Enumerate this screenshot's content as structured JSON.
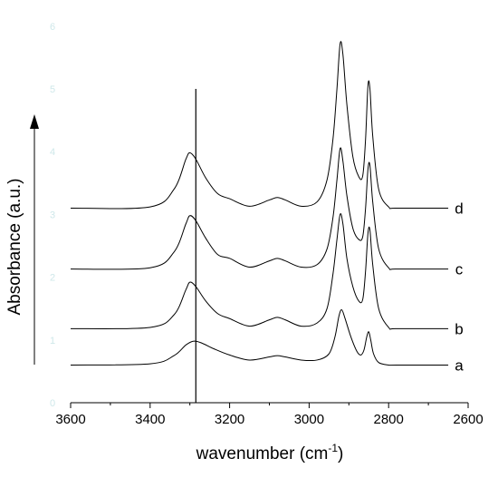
{
  "chart_data": {
    "type": "line",
    "title": "",
    "xlabel": "wavenumber (cm",
    "xlabel_sup": "-1",
    "xlabel_close": ")",
    "ylabel": "Absorbance (a.u.)",
    "xlim": [
      3600,
      2600
    ],
    "x_reversed": true,
    "ylim": [
      0,
      6.3
    ],
    "x_ticks": [
      "3600",
      "3400",
      "3200",
      "3000",
      "2800",
      "2600"
    ],
    "faint_y_labels": [
      "0",
      "1",
      "2",
      "3",
      "4",
      "5",
      "6"
    ],
    "grid": false,
    "reference_line_x": 3285,
    "series": [
      {
        "name": "a",
        "baseline": 0.6,
        "x": [
          3600,
          3400,
          3340,
          3310,
          3290,
          3270,
          3240,
          3200,
          3150,
          3100,
          3080,
          3060,
          3020,
          2980,
          2950,
          2935,
          2925,
          2918,
          2910,
          2895,
          2880,
          2870,
          2862,
          2855,
          2850,
          2845,
          2838,
          2825,
          2800,
          2780
        ],
        "y": [
          0.6,
          0.62,
          0.75,
          0.92,
          0.98,
          0.95,
          0.86,
          0.76,
          0.68,
          0.73,
          0.75,
          0.73,
          0.68,
          0.68,
          0.78,
          1.05,
          1.38,
          1.48,
          1.35,
          1.05,
          0.82,
          0.76,
          0.84,
          1.05,
          1.13,
          1.0,
          0.78,
          0.64,
          0.6,
          0.6
        ]
      },
      {
        "name": "b",
        "baseline": 1.18,
        "x": [
          3600,
          3400,
          3340,
          3310,
          3300,
          3285,
          3260,
          3230,
          3200,
          3150,
          3100,
          3080,
          3060,
          3020,
          2980,
          2955,
          2940,
          2930,
          2922,
          2915,
          2905,
          2890,
          2875,
          2865,
          2858,
          2852,
          2847,
          2840,
          2825,
          2800,
          2780
        ],
        "y": [
          1.18,
          1.2,
          1.4,
          1.8,
          1.92,
          1.85,
          1.62,
          1.42,
          1.34,
          1.22,
          1.32,
          1.36,
          1.32,
          1.22,
          1.27,
          1.5,
          2.05,
          2.6,
          3.0,
          2.85,
          2.3,
          1.85,
          1.62,
          1.65,
          2.1,
          2.7,
          2.75,
          2.2,
          1.5,
          1.2,
          1.18
        ]
      },
      {
        "name": "c",
        "baseline": 2.13,
        "x": [
          3600,
          3400,
          3340,
          3310,
          3300,
          3285,
          3260,
          3230,
          3200,
          3150,
          3100,
          3080,
          3060,
          3020,
          2980,
          2955,
          2940,
          2930,
          2922,
          2915,
          2905,
          2890,
          2875,
          2865,
          2858,
          2852,
          2847,
          2840,
          2825,
          2800,
          2780
        ],
        "y": [
          2.13,
          2.15,
          2.4,
          2.85,
          2.98,
          2.9,
          2.62,
          2.36,
          2.3,
          2.16,
          2.26,
          2.3,
          2.26,
          2.16,
          2.2,
          2.45,
          2.95,
          3.55,
          4.05,
          3.85,
          3.3,
          2.78,
          2.6,
          2.65,
          3.1,
          3.72,
          3.78,
          3.2,
          2.45,
          2.15,
          2.13
        ]
      },
      {
        "name": "d",
        "baseline": 3.1,
        "x": [
          3600,
          3400,
          3340,
          3310,
          3300,
          3285,
          3260,
          3230,
          3200,
          3150,
          3100,
          3080,
          3060,
          3020,
          2980,
          2955,
          2940,
          2930,
          2922,
          2915,
          2905,
          2890,
          2875,
          2865,
          2858,
          2852,
          2847,
          2840,
          2825,
          2800,
          2780
        ],
        "y": [
          3.1,
          3.12,
          3.4,
          3.88,
          3.98,
          3.88,
          3.58,
          3.33,
          3.25,
          3.13,
          3.23,
          3.27,
          3.23,
          3.13,
          3.2,
          3.55,
          4.2,
          5.0,
          5.72,
          5.55,
          4.75,
          3.92,
          3.6,
          3.62,
          4.2,
          5.05,
          5.0,
          4.25,
          3.4,
          3.12,
          3.1
        ]
      }
    ]
  }
}
